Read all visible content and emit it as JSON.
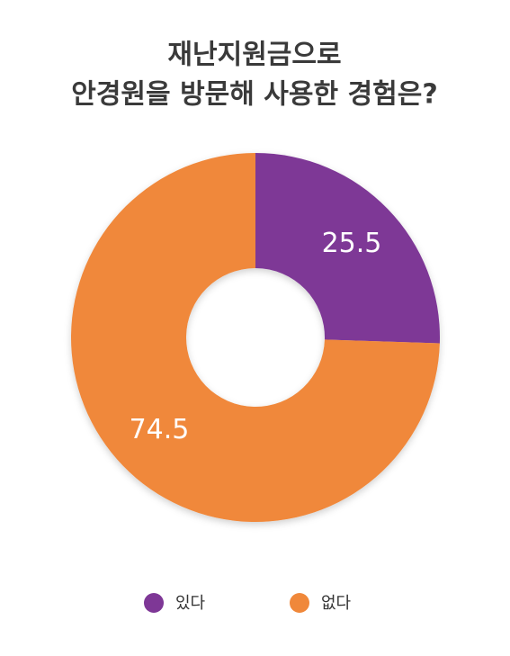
{
  "chart_data": {
    "type": "donut",
    "title": [
      "재난지원금으로",
      "안경원을 방문해 사용한 경험은?"
    ],
    "categories": [
      "있다",
      "없다"
    ],
    "values": [
      25.5,
      74.5
    ],
    "colors": [
      "#7e3796",
      "#f0883a"
    ]
  }
}
